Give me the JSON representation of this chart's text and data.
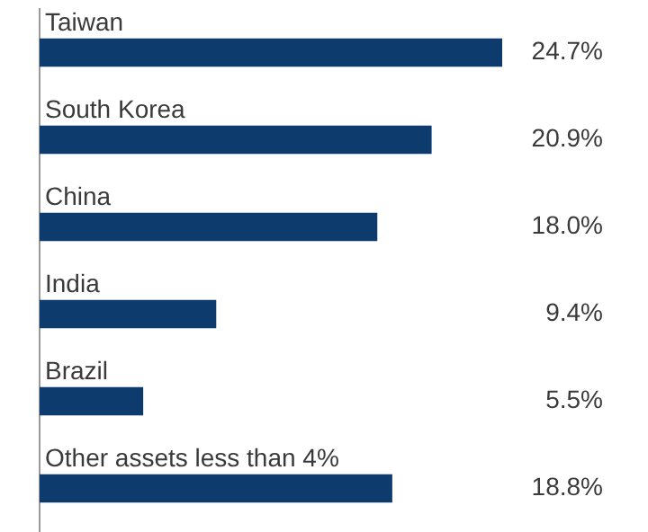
{
  "chart_data": {
    "type": "bar",
    "orientation": "horizontal",
    "categories": [
      "Taiwan",
      "South Korea",
      "China",
      "India",
      "Brazil",
      "Other assets less than 4%"
    ],
    "values": [
      24.7,
      20.9,
      18.0,
      9.4,
      5.5,
      18.8
    ],
    "value_labels": [
      "24.7%",
      "20.9%",
      "18.0%",
      "9.4%",
      "5.5%",
      "18.8%"
    ],
    "color": "#0d3b6e",
    "tick_labels": "y",
    "legend": false
  }
}
